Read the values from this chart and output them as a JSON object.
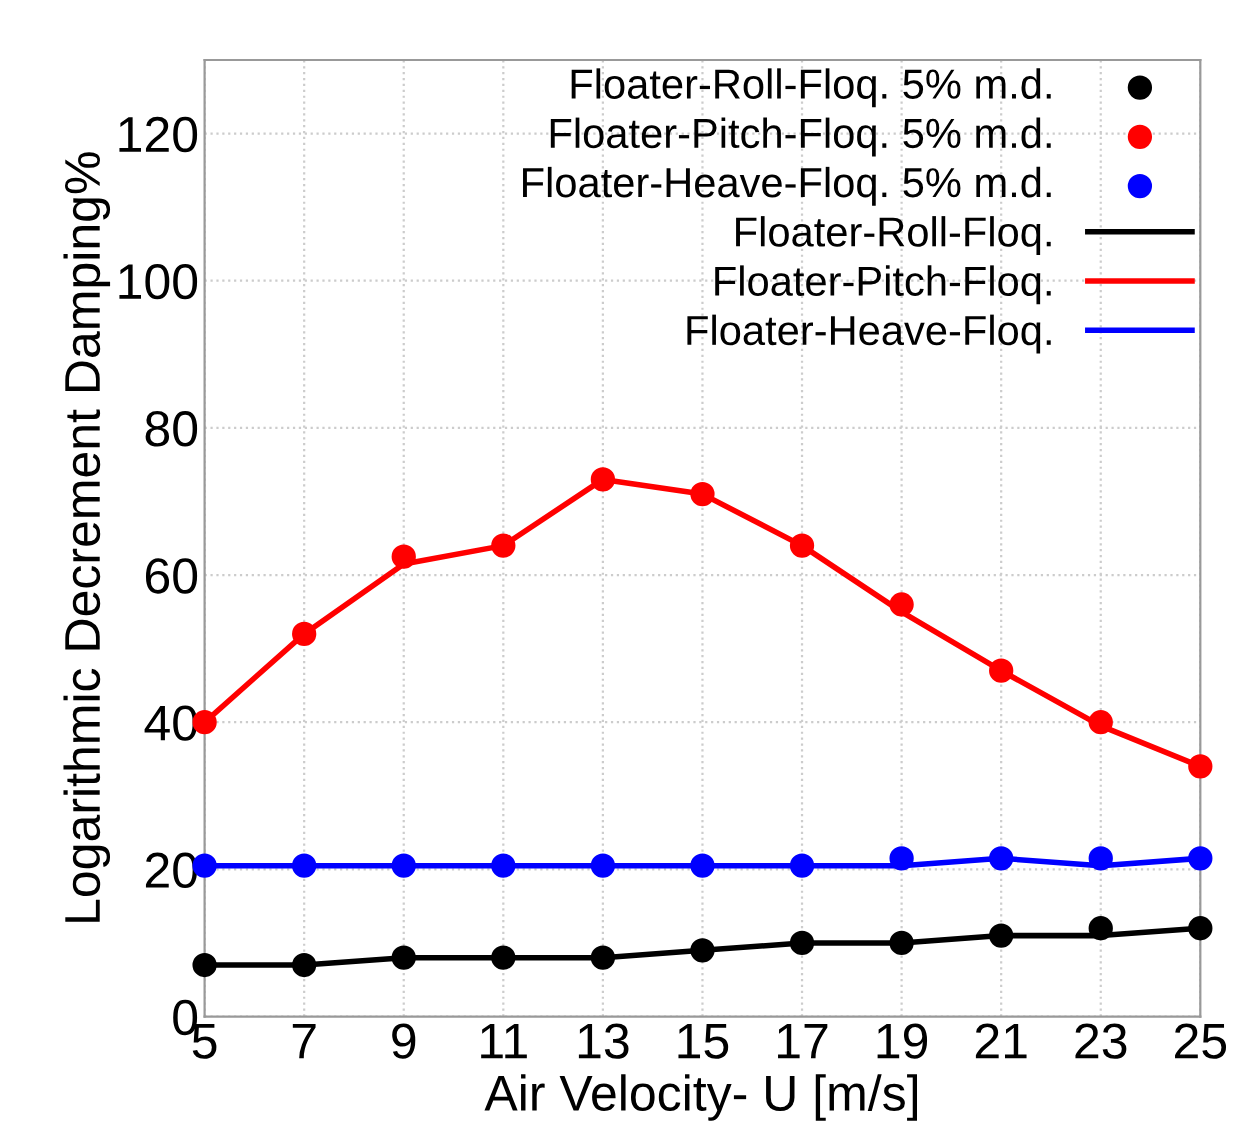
{
  "chart_data": {
    "type": "line",
    "xlabel": "Air Velocity- U [m/s]",
    "ylabel": "Logarithmic Decrement Damping%",
    "x": [
      5,
      7,
      9,
      11,
      13,
      15,
      17,
      19,
      21,
      23,
      25
    ],
    "xlim": [
      5,
      25
    ],
    "xticks": [
      5,
      7,
      9,
      11,
      13,
      15,
      17,
      19,
      21,
      23,
      25
    ],
    "ylim": [
      0,
      130
    ],
    "yticks": [
      0,
      20,
      40,
      60,
      80,
      100,
      120
    ],
    "grid": true,
    "legend": "top right",
    "series": [
      {
        "name": "Floater-Roll-Floq. 5% m.d.",
        "type": "scatter",
        "marker": "circle",
        "color": "#000000",
        "values": [
          7,
          7,
          8,
          8,
          8,
          9,
          10,
          10,
          11,
          12,
          12
        ]
      },
      {
        "name": "Floater-Pitch-Floq. 5% m.d.",
        "type": "scatter",
        "marker": "circle",
        "color": "#ff0000",
        "values": [
          40,
          52,
          62.5,
          64,
          73,
          71,
          64,
          56,
          47,
          40,
          34
        ]
      },
      {
        "name": "Floater-Heave-Floq. 5% m.d.",
        "type": "scatter",
        "marker": "circle",
        "color": "#0000ff",
        "values": [
          20.5,
          20.5,
          20.5,
          20.5,
          20.5,
          20.5,
          20.5,
          21.5,
          21.5,
          21.5,
          21.5
        ]
      },
      {
        "name": "Floater-Roll-Floq.",
        "marker": "none",
        "line_style": "solid",
        "color": "#000000",
        "values": [
          7,
          7,
          8,
          8,
          8,
          9,
          10,
          10,
          11,
          11,
          12
        ]
      },
      {
        "name": "Floater-Pitch-Floq.",
        "marker": "none",
        "line_style": "solid",
        "color": "#ff0000",
        "values": [
          40,
          52,
          61.5,
          64,
          73,
          71,
          64,
          55,
          47,
          39.5,
          34
        ]
      },
      {
        "name": "Floater-Heave-Floq.",
        "marker": "none",
        "line_style": "solid",
        "color": "#0000ff",
        "values": [
          20.5,
          20.5,
          20.5,
          20.5,
          20.5,
          20.5,
          20.5,
          20.5,
          21.5,
          20.5,
          21.5
        ]
      }
    ]
  }
}
